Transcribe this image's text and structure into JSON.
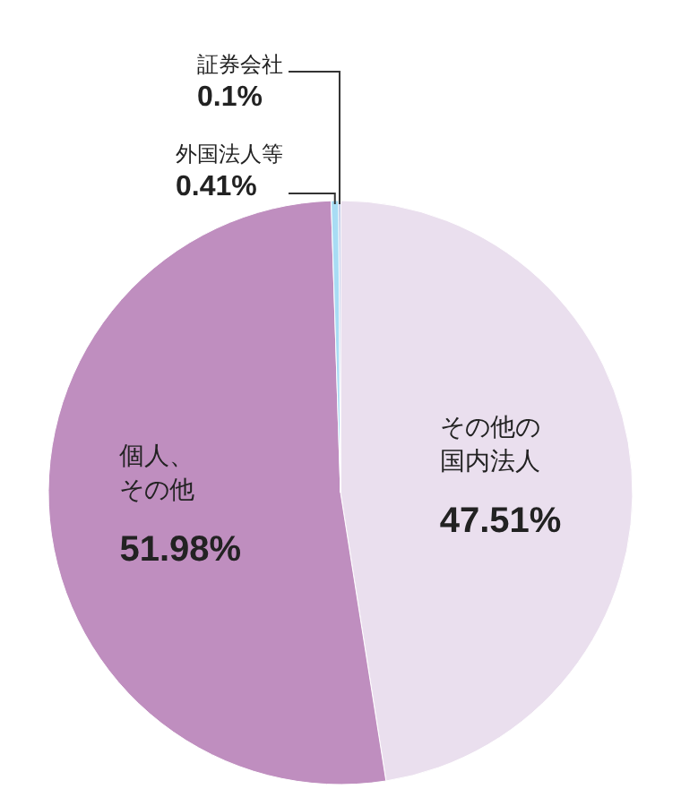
{
  "chart_data": {
    "type": "pie",
    "categories": [
      "その他の国内法人",
      "個人、その他",
      "外国法人等",
      "証券会社"
    ],
    "values": [
      47.51,
      51.98,
      0.41,
      0.1
    ],
    "colors": [
      "#eadfee",
      "#bf8ebf",
      "#a8dcf4",
      "#8e9dd3"
    ],
    "value_labels": [
      "47.51%",
      "51.98%",
      "0.41%",
      "0.1%"
    ]
  }
}
